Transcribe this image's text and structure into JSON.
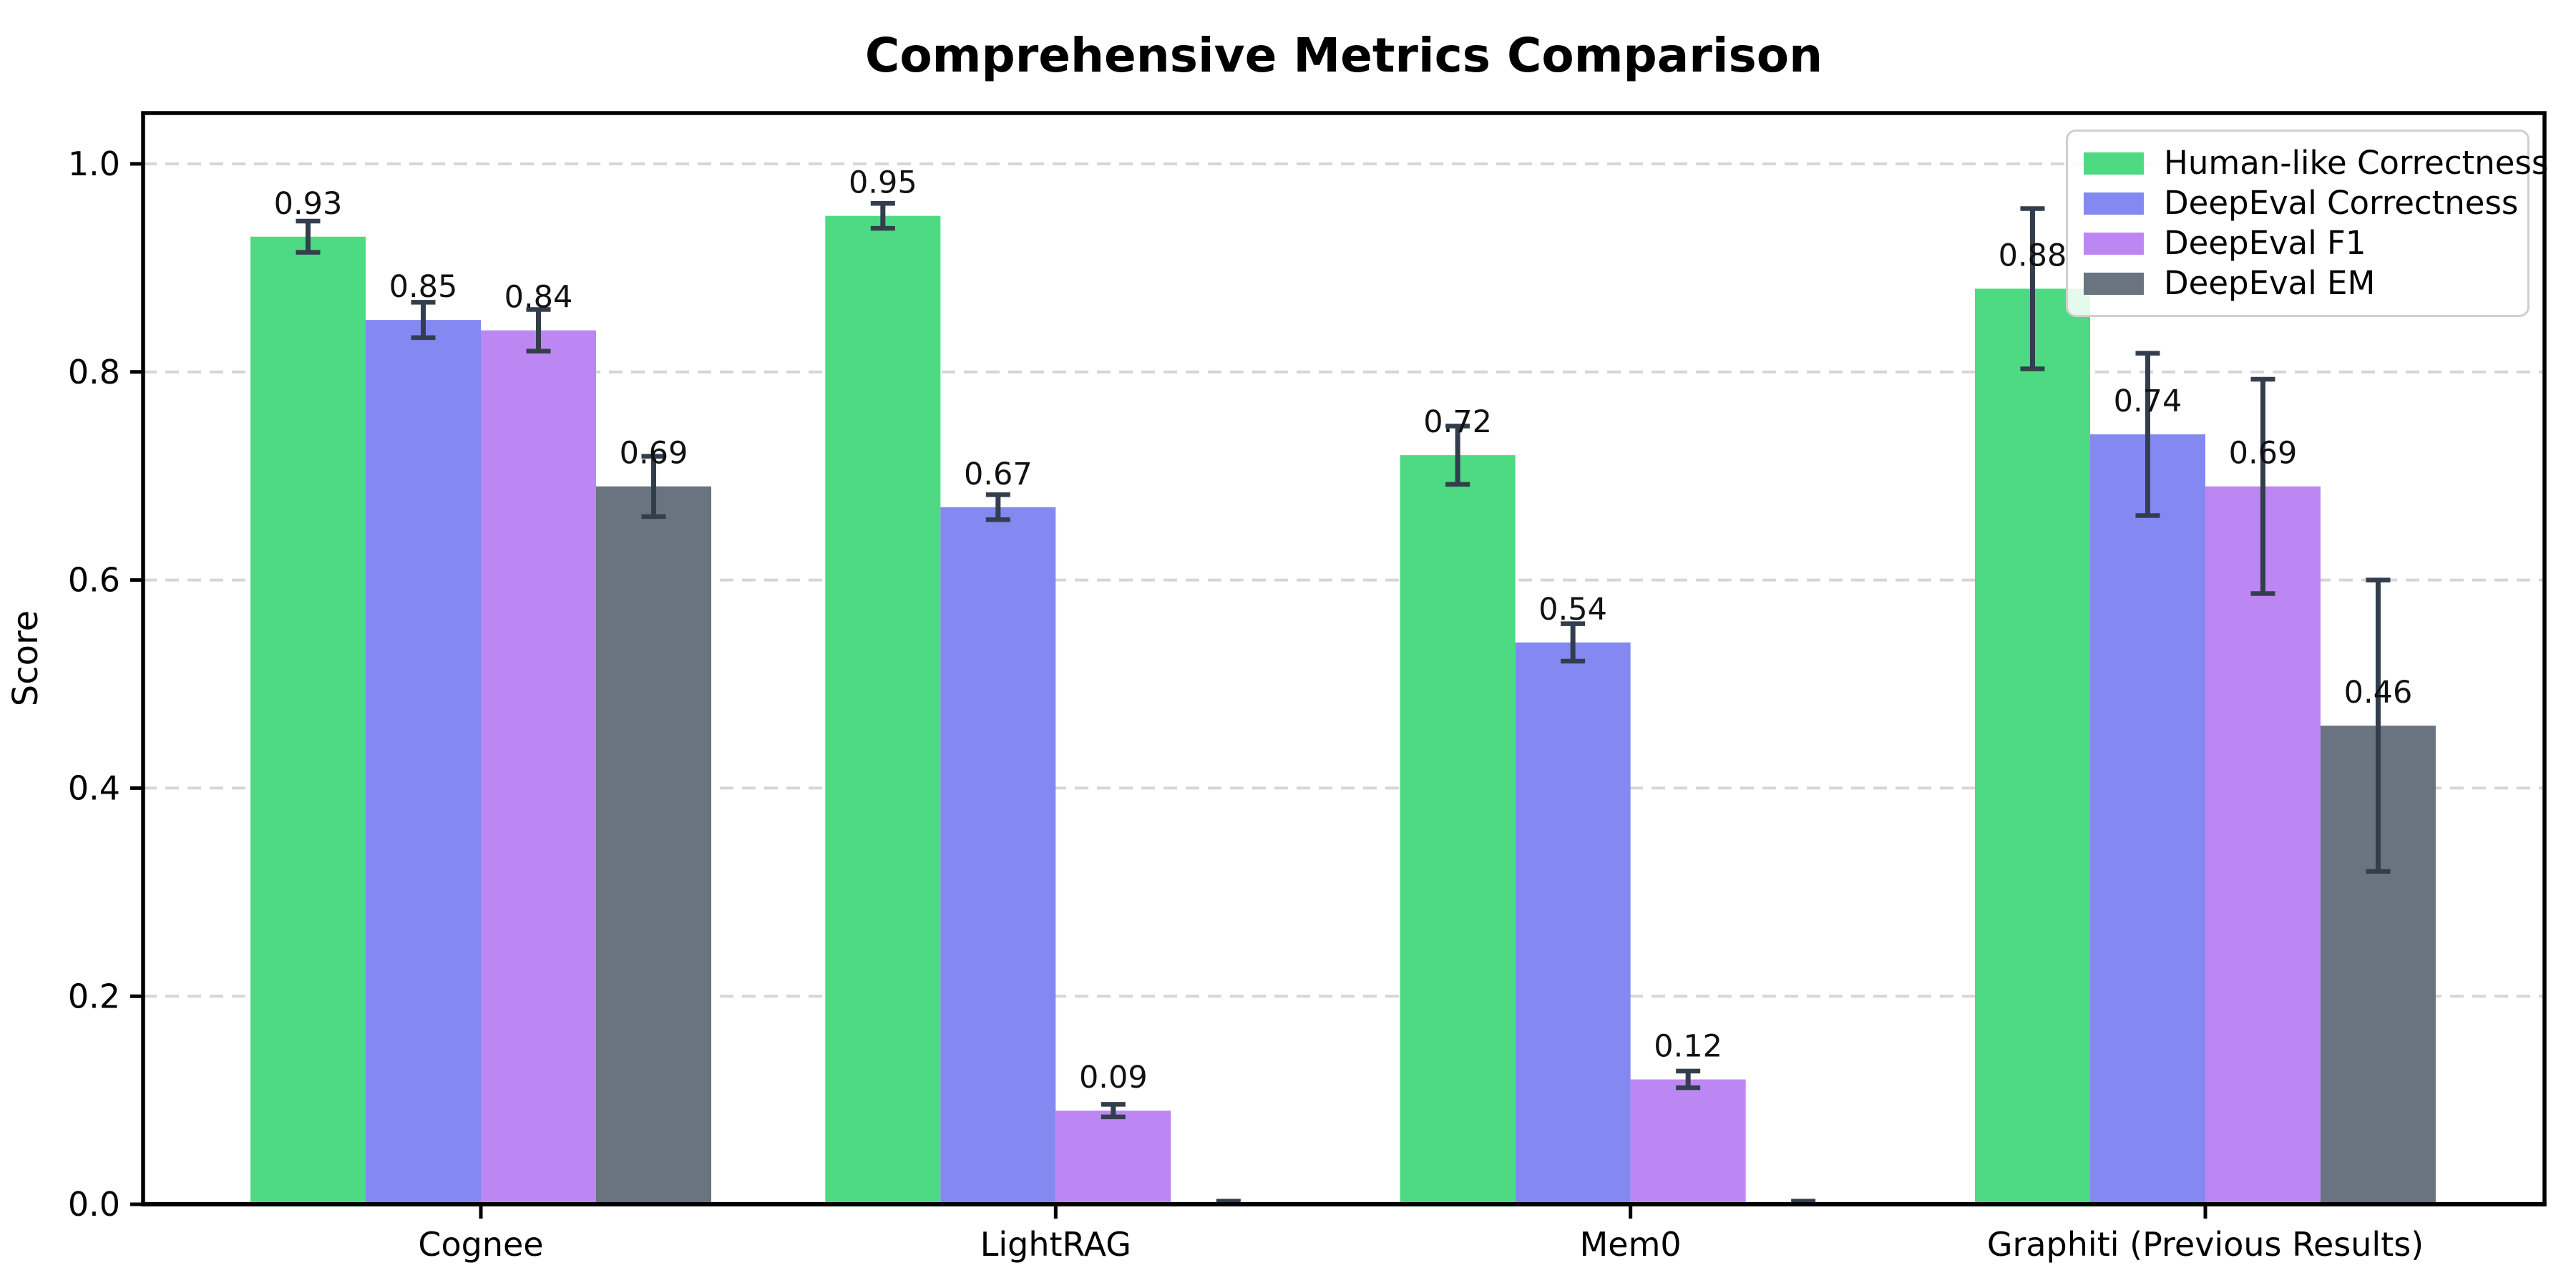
{
  "chart_data": {
    "type": "bar",
    "title": "Comprehensive Metrics Comparison",
    "xlabel": "",
    "ylabel": "Score",
    "ylim": [
      0,
      1.05
    ],
    "yticks": [
      0.0,
      0.2,
      0.4,
      0.6,
      0.8,
      1.0
    ],
    "grid": "horizontal dashed gridlines",
    "legend_position": "upper right",
    "categories": [
      "Cognee",
      "LightRAG",
      "Mem0",
      "Graphiti (Previous Results)"
    ],
    "series": [
      {
        "name": "Human-like Correctness",
        "color": "#4dda82",
        "values": [
          0.93,
          0.95,
          0.72,
          0.88
        ],
        "errors": [
          0.015,
          0.012,
          0.028,
          0.077
        ],
        "labels": [
          "0.93",
          "0.95",
          "0.72",
          "0.88"
        ]
      },
      {
        "name": "DeepEval Correctness",
        "color": "#8389f0",
        "values": [
          0.85,
          0.67,
          0.54,
          0.74
        ],
        "errors": [
          0.017,
          0.012,
          0.018,
          0.078
        ],
        "labels": [
          "0.85",
          "0.67",
          "0.54",
          "0.74"
        ]
      },
      {
        "name": "DeepEval F1",
        "color": "#bd87f3",
        "values": [
          0.84,
          0.09,
          0.12,
          0.69
        ],
        "errors": [
          0.02,
          0.006,
          0.008,
          0.103
        ],
        "labels": [
          "0.84",
          "0.09",
          "0.12",
          "0.69"
        ]
      },
      {
        "name": "DeepEval EM",
        "color": "#6a7380",
        "values": [
          0.69,
          0.0,
          0.0,
          0.46
        ],
        "errors": [
          0.029,
          0.003,
          0.003,
          0.14
        ],
        "labels": [
          "0.69",
          "",
          "",
          "0.46"
        ]
      }
    ],
    "error_bar_color": "#333e4d",
    "grid_color": "#d6d6d6",
    "axis_color": "#000000"
  }
}
